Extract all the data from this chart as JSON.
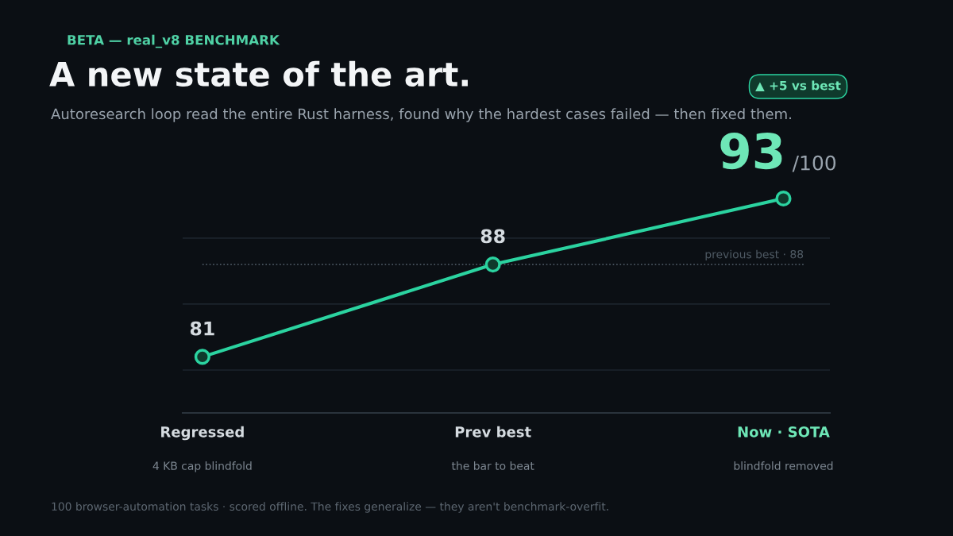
{
  "chart_data": {
    "type": "line",
    "title": "A new state of the art.",
    "subtitle": "Autoresearch loop read the entire Rust harness, found why the hardest cases failed — then fixed them.",
    "categories": [
      "Regressed",
      "Prev best",
      "Now · SOTA"
    ],
    "series": [
      {
        "color": "#2bd3a0",
        "values": [
          81,
          88,
          93
        ]
      }
    ],
    "tick_labels": "x",
    "legend": false,
    "marker": "circle",
    "line_style": "solid",
    "data_labels": true,
    "ref_lines": [
      {
        "axis": "y",
        "value": 80,
        "color": "#1c242c",
        "line_style": "solid"
      },
      {
        "axis": "y",
        "value": 85,
        "color": "#1c242c",
        "line_style": "solid"
      },
      {
        "axis": "y",
        "value": 90,
        "color": "#1c242c",
        "line_style": "solid"
      },
      {
        "axis": "y",
        "value": 88,
        "label": "previous best · 88",
        "color": "#4a5560",
        "line_style": "dotted"
      }
    ],
    "annotations": [
      "BETA — real_v8 BENCHMARK",
      "▲ +5 vs best",
      "/100",
      "4 KB cap blindfold",
      "the bar to beat",
      "blindfold removed",
      "100 browser-automation tasks · scored offline. The fixes generalize — they aren't benchmark-overfit."
    ]
  }
}
